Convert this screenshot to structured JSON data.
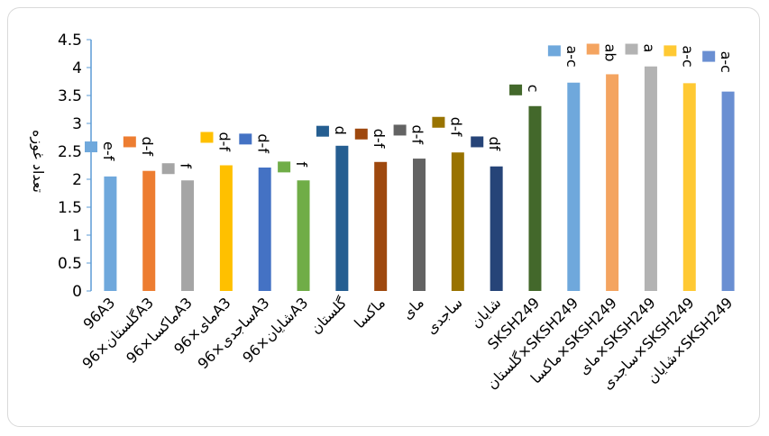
{
  "chart_data": {
    "type": "bar",
    "title": "",
    "xlabel": "",
    "ylabel": "تعداد غوزه",
    "ylim": [
      0,
      4.5
    ],
    "yticks": [
      "0",
      "0.5",
      "1",
      "1.5",
      "2",
      "2.5",
      "3",
      "3.5",
      "4",
      "4.5"
    ],
    "grid": false,
    "legend": "none",
    "categories": [
      "96A3",
      "گلستان×96A3",
      "ماکسا×96A3",
      "مای×96A3",
      "ساجدی×96A3",
      "شایان×96A3",
      "گلستان",
      "ماکسا",
      "مای",
      "ساجدی",
      "شایان",
      "SKSH249",
      "گلستان×SKSH249",
      "ماکسا×SKSH249",
      "مای×SKSH249",
      "ساجدی×SKSH249",
      "شایان×SKSH249"
    ],
    "values": [
      2.05,
      2.15,
      1.98,
      2.25,
      2.21,
      1.98,
      2.6,
      2.31,
      2.37,
      2.48,
      2.23,
      3.31,
      3.73,
      3.88,
      4.02,
      3.72,
      3.57
    ],
    "marker_values": [
      2.58,
      2.67,
      2.19,
      2.75,
      2.72,
      2.22,
      2.86,
      2.81,
      2.88,
      3.02,
      2.67,
      3.6,
      4.3,
      4.33,
      4.33,
      4.3,
      4.2
    ],
    "significance_labels": [
      "e-f",
      "d-f",
      "f",
      "d-f",
      "d-f",
      "f",
      "d",
      "d-f",
      "d-f",
      "d-f",
      "df",
      "c",
      "a-c",
      "ab",
      "a",
      "a-c",
      "a-c"
    ],
    "colors": [
      "#6fa8dc",
      "#ed7d31",
      "#a5a5a5",
      "#ffc000",
      "#4472c4",
      "#70ad47",
      "#255e91",
      "#9e480e",
      "#636363",
      "#997300",
      "#264478",
      "#43682b",
      "#6fa8dc",
      "#f4a460",
      "#b3b3b3",
      "#ffc933",
      "#6a8fd2"
    ]
  }
}
